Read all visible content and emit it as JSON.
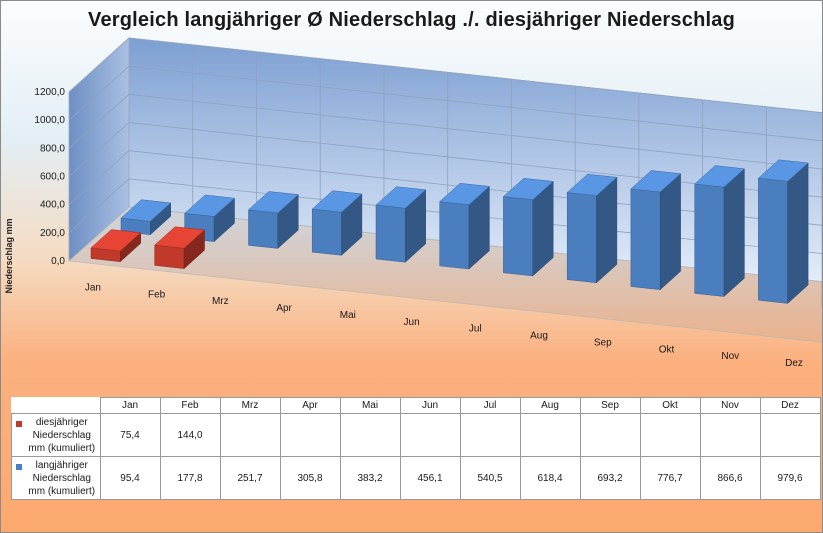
{
  "chart_data": {
    "type": "bar",
    "title": "Vergleich langjähriger Ø Niederschlag ./. diesjähriger Niederschlag",
    "ylabel": "Niederschlag mm",
    "xlabel": "",
    "ylim": [
      0,
      1200
    ],
    "yticks": [
      "0,0",
      "200,0",
      "400,0",
      "600,0",
      "800,0",
      "1000,0",
      "1200,0"
    ],
    "grid": true,
    "legend": "table-below",
    "categories": [
      "Jan",
      "Feb",
      "Mrz",
      "Apr",
      "Mai",
      "Jun",
      "Jul",
      "Aug",
      "Sep",
      "Okt",
      "Nov",
      "Dez"
    ],
    "series": [
      {
        "name": "diesjähriger Niederschlag mm (kumuliert)",
        "color": "#c0392b",
        "values": [
          75.4,
          144.0,
          null,
          null,
          null,
          null,
          null,
          null,
          null,
          null,
          null,
          null
        ],
        "labels": [
          "75,4",
          "144,0",
          "",
          "",
          "",
          "",
          "",
          "",
          "",
          "",
          "",
          ""
        ]
      },
      {
        "name": "langjähriger Niederschlag mm (kumuliert)",
        "color": "#4a7ebf",
        "values": [
          95.4,
          177.8,
          251.7,
          305.8,
          383.2,
          456.1,
          540.5,
          618.4,
          693.2,
          776.7,
          866.6,
          979.6
        ],
        "labels": [
          "95,4",
          "177,8",
          "251,7",
          "305,8",
          "383,2",
          "456,1",
          "540,5",
          "618,4",
          "693,2",
          "776,7",
          "866,6",
          "979,6"
        ]
      }
    ]
  }
}
